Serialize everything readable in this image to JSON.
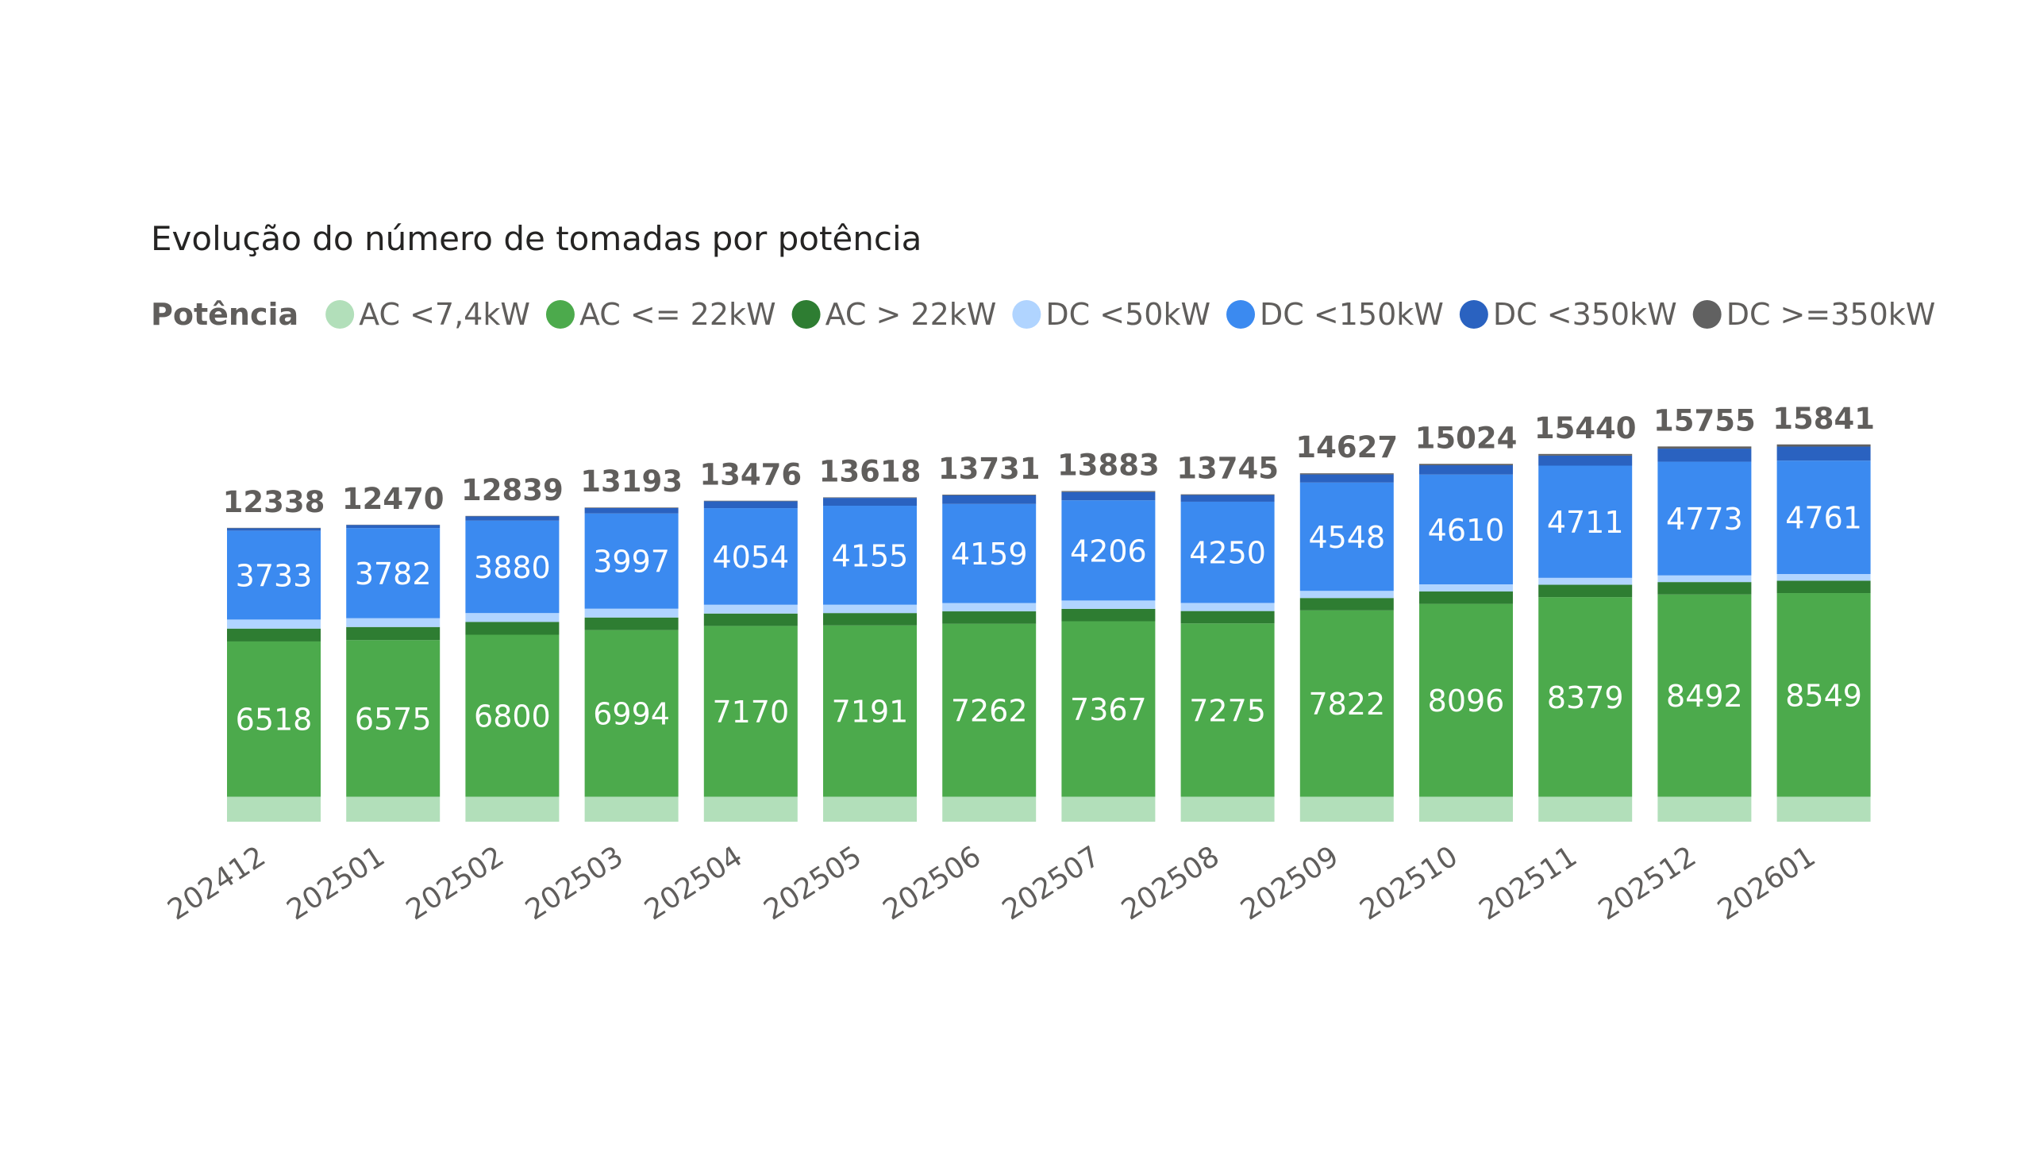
{
  "chart_data": {
    "type": "bar",
    "stacked": true,
    "title": "Evolução do número de tomadas por potência",
    "legend": {
      "title": "Potência",
      "placement": "top-left"
    },
    "grid": false,
    "categories": [
      "202412",
      "202501",
      "202502",
      "202503",
      "202504",
      "202505",
      "202506",
      "202507",
      "202508",
      "202509",
      "202510",
      "202511",
      "202512",
      "202601"
    ],
    "totals": [
      12338,
      12470,
      12839,
      13193,
      13476,
      13618,
      13731,
      13883,
      13745,
      14627,
      15024,
      15440,
      15755,
      15841
    ],
    "ylim": [
      0,
      16000
    ],
    "series": [
      {
        "name": "AC <7,4kW",
        "color": "#b2dfba",
        "values": [
          1050,
          1050,
          1050,
          1050,
          1050,
          1050,
          1050,
          1050,
          1050,
          1050,
          1050,
          1050,
          1050,
          1050
        ]
      },
      {
        "name": "AC <= 22kW",
        "color": "#4caa4c",
        "values": [
          6518,
          6575,
          6800,
          6994,
          7170,
          7191,
          7262,
          7367,
          7275,
          7822,
          8096,
          8379,
          8492,
          8549
        ],
        "show_labels": true
      },
      {
        "name": "AC > 22kW",
        "color": "#2e7d32",
        "values": [
          540,
          550,
          540,
          530,
          520,
          520,
          520,
          520,
          520,
          520,
          520,
          520,
          520,
          520
        ]
      },
      {
        "name": "DC <50kW",
        "color": "#b0d4ff",
        "values": [
          380,
          370,
          370,
          370,
          370,
          350,
          350,
          350,
          340,
          300,
          300,
          290,
          280,
          280
        ]
      },
      {
        "name": "DC <150kW",
        "color": "#3b8af0",
        "values": [
          3733,
          3782,
          3880,
          3997,
          4054,
          4155,
          4159,
          4206,
          4250,
          4548,
          4610,
          4711,
          4773,
          4761
        ],
        "show_labels": true
      },
      {
        "name": "DC <350kW",
        "color": "#2a62c0",
        "values": [
          100,
          130,
          180,
          230,
          290,
          330,
          360,
          350,
          280,
          340,
          390,
          420,
          550,
          590
        ]
      },
      {
        "name": "DC >=350kW",
        "color": "#616161",
        "values": [
          17,
          13,
          19,
          22,
          22,
          22,
          30,
          40,
          30,
          47,
          58,
          70,
          90,
          91
        ]
      }
    ]
  }
}
